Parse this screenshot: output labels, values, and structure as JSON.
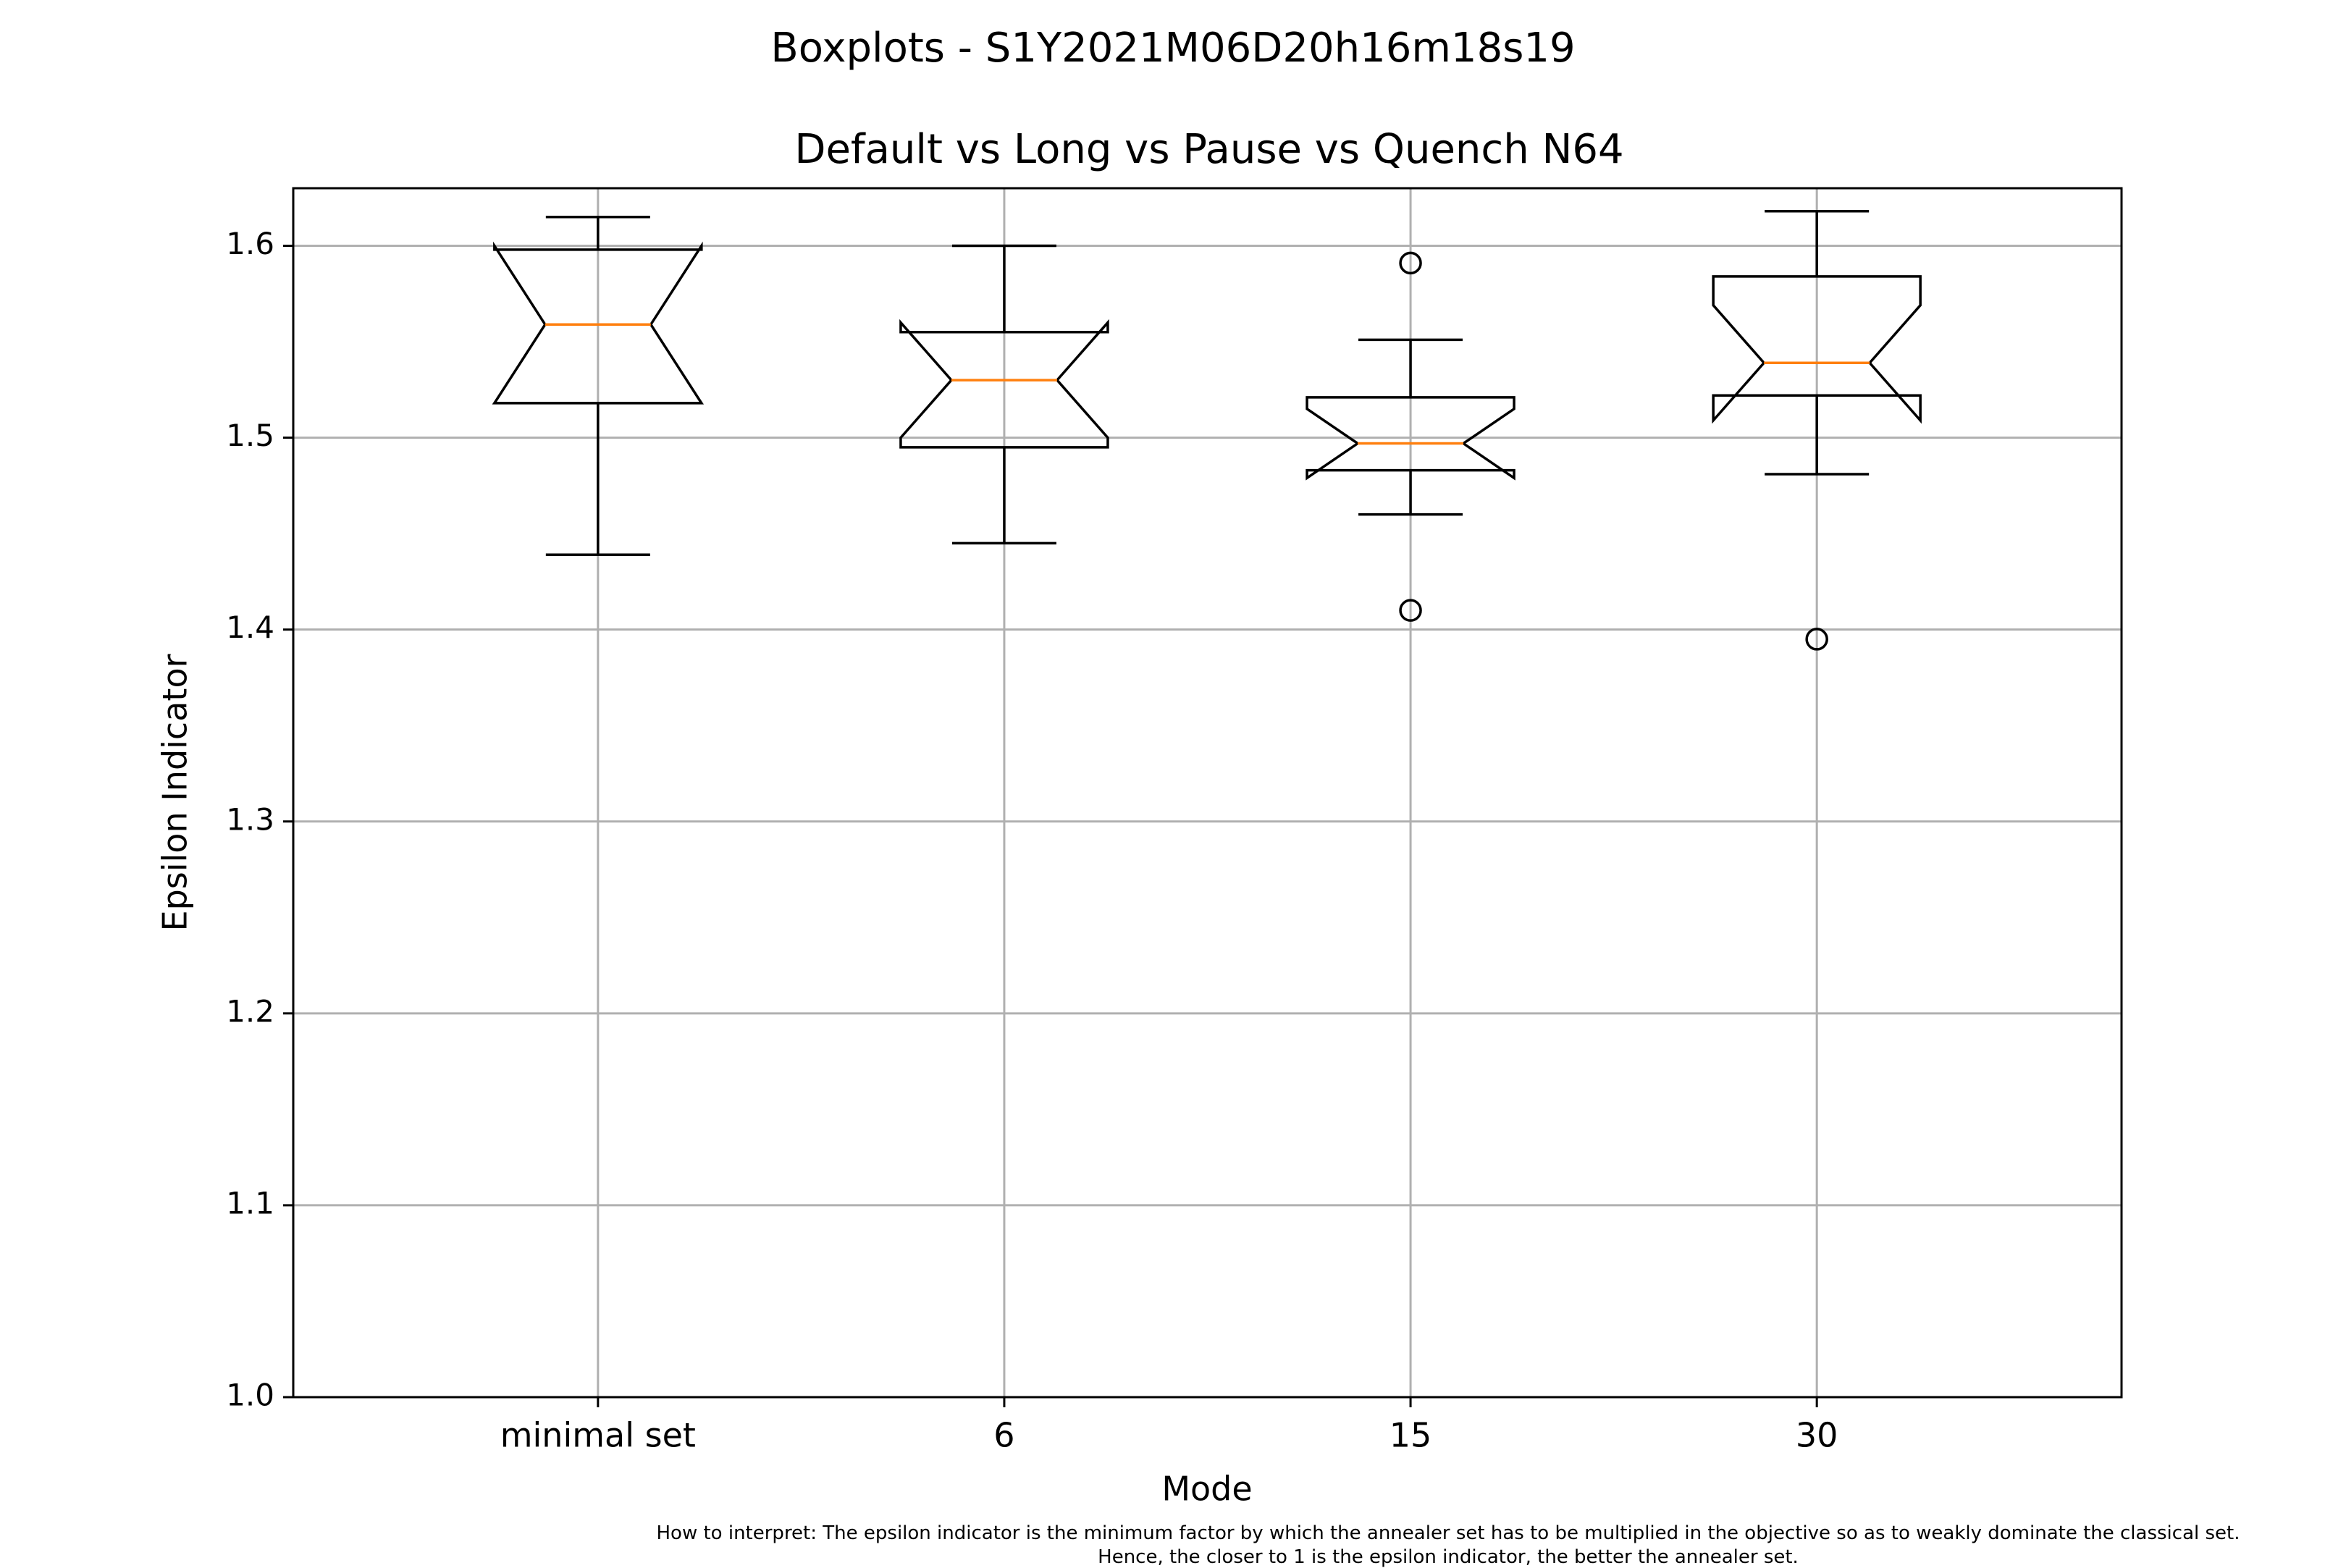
{
  "chart_data": {
    "type": "boxplot",
    "suptitle": "Boxplots - S1Y2021M06D20h16m18s19",
    "title": "Default vs Long vs Pause vs Quench N64",
    "xlabel": "Mode",
    "ylabel": "Epsilon Indicator",
    "categories": [
      "minimal set",
      "6",
      "15",
      "30"
    ],
    "ylim": [
      1.0,
      1.63
    ],
    "yticks": [
      1.0,
      1.1,
      1.2,
      1.3,
      1.4,
      1.5,
      1.6
    ],
    "ytick_labels": [
      "1.0",
      "1.1",
      "1.2",
      "1.3",
      "1.4",
      "1.5",
      "1.6"
    ],
    "grid": true,
    "notched": true,
    "boxes": [
      {
        "category": "minimal set",
        "whisker_low": 1.439,
        "q1": 1.518,
        "median": 1.559,
        "q3": 1.598,
        "whisker_high": 1.615,
        "notch_low": 1.518,
        "notch_high": 1.6,
        "outliers": []
      },
      {
        "category": "6",
        "whisker_low": 1.445,
        "q1": 1.495,
        "median": 1.53,
        "q3": 1.555,
        "whisker_high": 1.6,
        "notch_low": 1.5,
        "notch_high": 1.56,
        "outliers": []
      },
      {
        "category": "15",
        "whisker_low": 1.46,
        "q1": 1.483,
        "median": 1.497,
        "q3": 1.521,
        "whisker_high": 1.551,
        "notch_low": 1.479,
        "notch_high": 1.515,
        "outliers": [
          1.591,
          1.41
        ]
      },
      {
        "category": "30",
        "whisker_low": 1.481,
        "q1": 1.522,
        "median": 1.539,
        "q3": 1.584,
        "whisker_high": 1.618,
        "notch_low": 1.509,
        "notch_high": 1.569,
        "outliers": [
          1.395
        ]
      }
    ],
    "colors": {
      "box": "#000000",
      "median": "#ff7f0e",
      "grid": "#b0b0b0"
    },
    "footnote_lines": [
      "How to interpret: The epsilon indicator is the minimum factor by which the annealer set has to be multiplied in the objective so as to weakly dominate the classical set.",
      "Hence, the closer to 1 is the epsilon indicator, the better the annealer set."
    ]
  }
}
